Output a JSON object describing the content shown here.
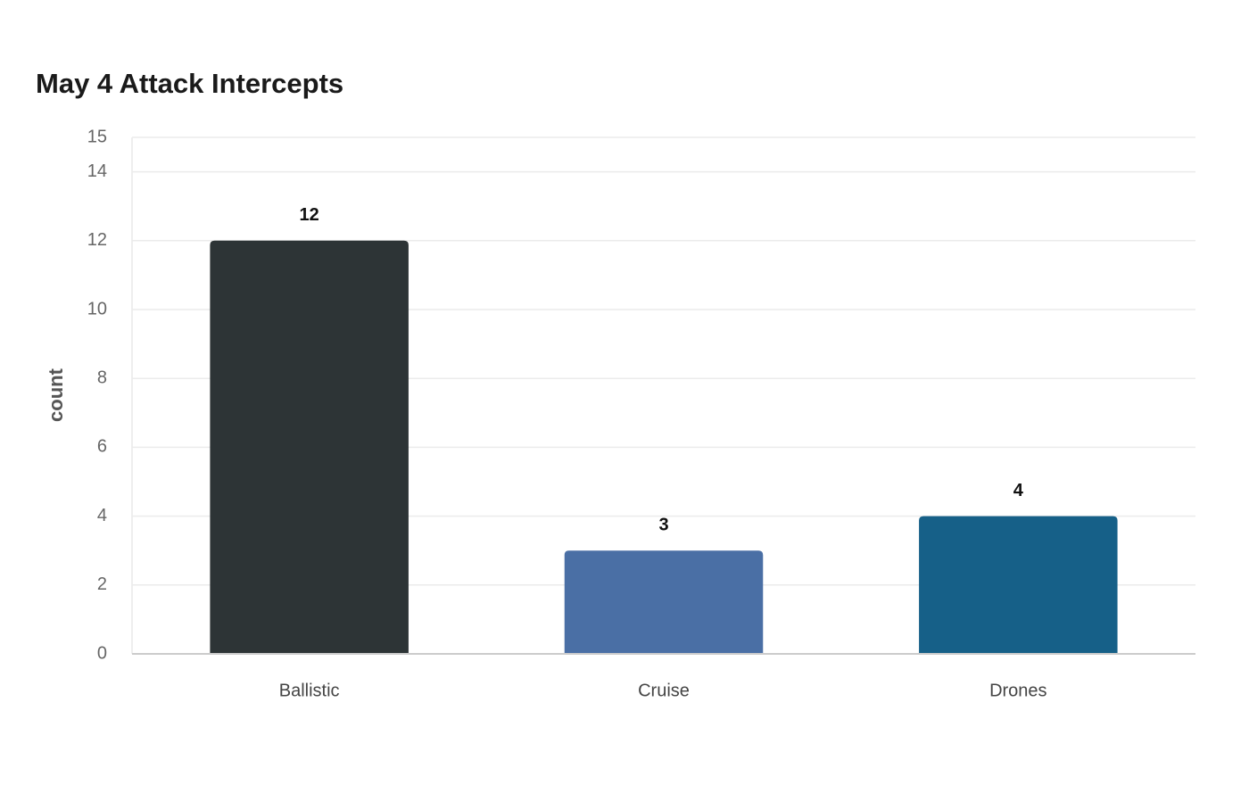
{
  "chart_data": {
    "type": "bar",
    "title": "May 4 Attack Intercepts",
    "y_label": "count",
    "categories": [
      "Ballistic",
      "Cruise",
      "Drones"
    ],
    "values": [
      12,
      3,
      4
    ],
    "colors": [
      "#2d3436",
      "#4a6fa5",
      "#166088"
    ],
    "ylim": [
      0,
      15
    ],
    "yticks": [
      0,
      2,
      4,
      6,
      8,
      10,
      12,
      14,
      15
    ],
    "grid": true
  }
}
